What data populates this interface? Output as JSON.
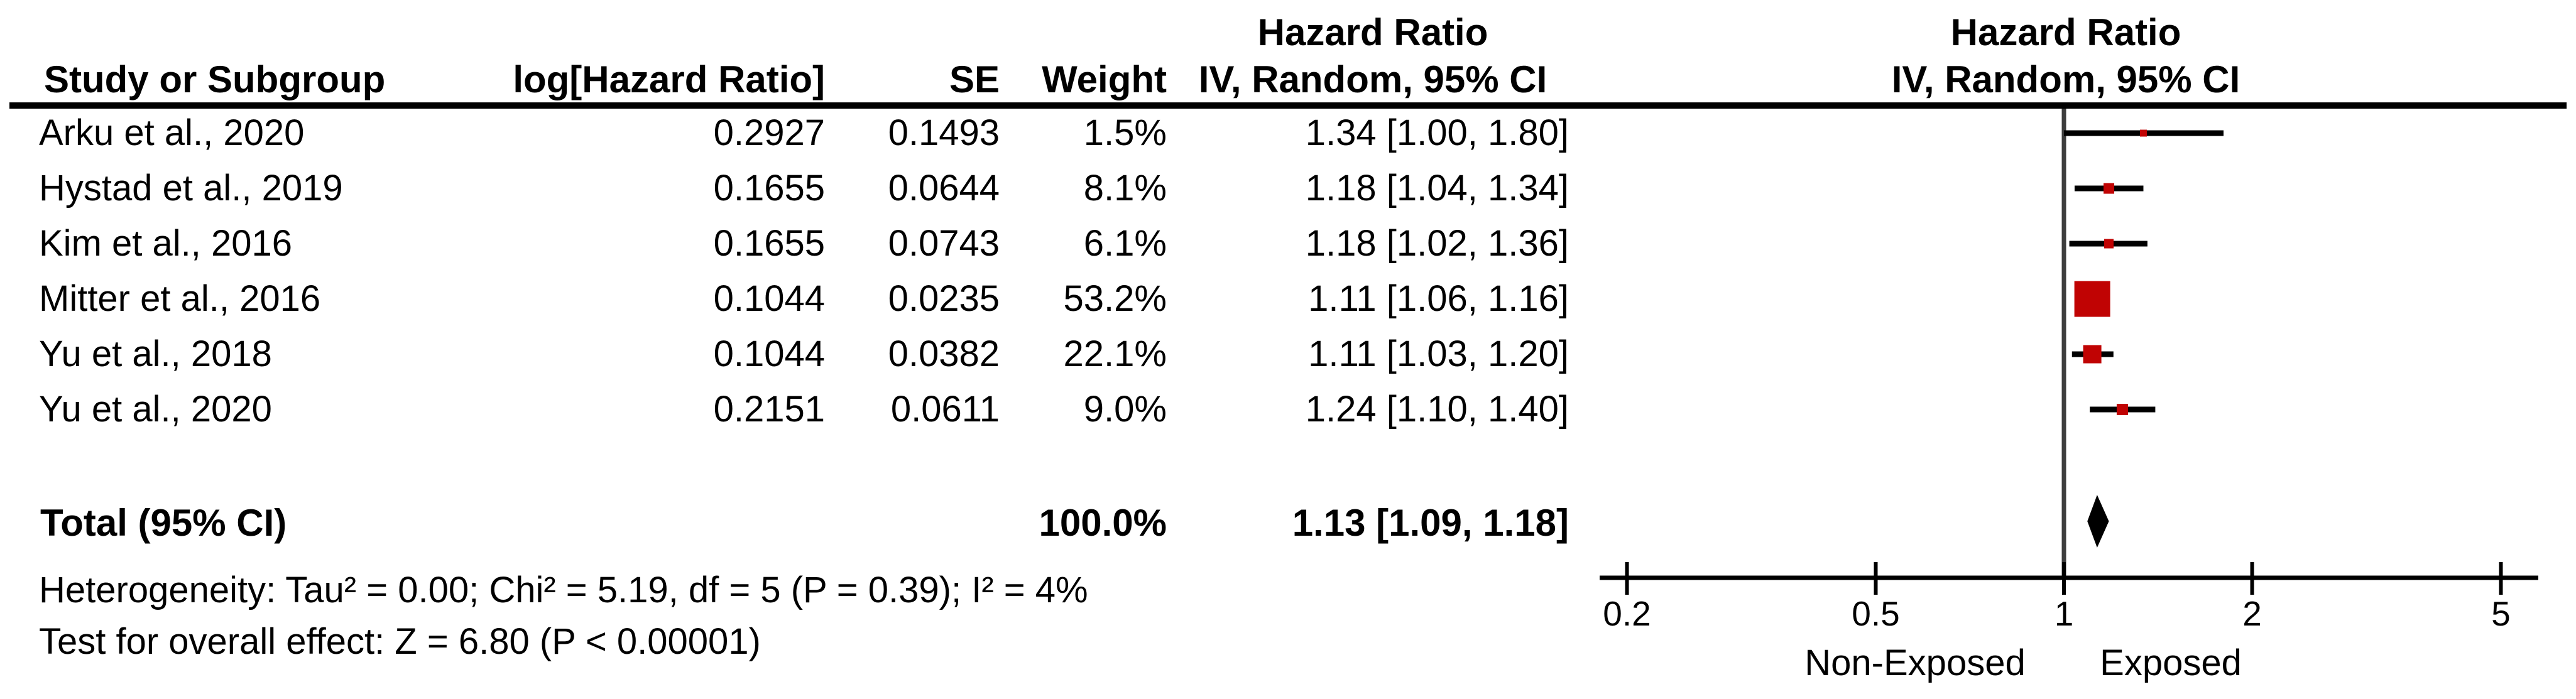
{
  "headers": {
    "study": "Study or Subgroup",
    "log_hr": "log[Hazard Ratio]",
    "se": "SE",
    "weight": "Weight",
    "effect_title": "Hazard Ratio",
    "method": "IV, Random, 95% CI"
  },
  "table": {
    "rows": [
      {
        "study": "Arku et al., 2020",
        "log_hr": "0.2927",
        "se": "0.1493",
        "weight": "1.5%",
        "ci": "1.34 [1.00, 1.80]"
      },
      {
        "study": "Hystad et al., 2019",
        "log_hr": "0.1655",
        "se": "0.0644",
        "weight": "8.1%",
        "ci": "1.18 [1.04, 1.34]"
      },
      {
        "study": "Kim et al., 2016",
        "log_hr": "0.1655",
        "se": "0.0743",
        "weight": "6.1%",
        "ci": "1.18 [1.02, 1.36]"
      },
      {
        "study": "Mitter et al., 2016",
        "log_hr": "0.1044",
        "se": "0.0235",
        "weight": "53.2%",
        "ci": "1.11 [1.06, 1.16]"
      },
      {
        "study": "Yu et al., 2018",
        "log_hr": "0.1044",
        "se": "0.0382",
        "weight": "22.1%",
        "ci": "1.11 [1.03, 1.20]"
      },
      {
        "study": "Yu et al., 2020",
        "log_hr": "0.2151",
        "se": "0.0611",
        "weight": "9.0%",
        "ci": "1.24 [1.10, 1.40]"
      }
    ],
    "total": {
      "label": "Total (95% CI)",
      "weight": "100.0%",
      "ci": "1.13 [1.09, 1.18]"
    }
  },
  "footer": {
    "heterogeneity": "Heterogeneity: Tau² = 0.00; Chi² = 5.19, df = 5 (P = 0.39); I² = 4%",
    "overall_effect": "Test for overall effect: Z = 6.80 (P < 0.00001)"
  },
  "chart_data": {
    "type": "forest",
    "title": "Hazard Ratio",
    "method": "IV, Random, 95% CI",
    "x_axis": {
      "scale": "log10",
      "ticks": [
        0.2,
        0.5,
        1,
        2,
        5
      ],
      "min": 0.2,
      "max": 5,
      "null_value": 1,
      "left_label": "Non-Exposed",
      "right_label": "Exposed"
    },
    "studies": [
      {
        "name": "Arku et al., 2020",
        "hr": 1.34,
        "lo": 1.0,
        "hi": 1.8,
        "weight_pct": 1.5
      },
      {
        "name": "Hystad et al., 2019",
        "hr": 1.18,
        "lo": 1.04,
        "hi": 1.34,
        "weight_pct": 8.1
      },
      {
        "name": "Kim et al., 2016",
        "hr": 1.18,
        "lo": 1.02,
        "hi": 1.36,
        "weight_pct": 6.1
      },
      {
        "name": "Mitter et al., 2016",
        "hr": 1.11,
        "lo": 1.06,
        "hi": 1.16,
        "weight_pct": 53.2
      },
      {
        "name": "Yu et al., 2018",
        "hr": 1.11,
        "lo": 1.03,
        "hi": 1.2,
        "weight_pct": 22.1
      },
      {
        "name": "Yu et al., 2020",
        "hr": 1.24,
        "lo": 1.1,
        "hi": 1.4,
        "weight_pct": 9.0
      }
    ],
    "total": {
      "hr": 1.13,
      "lo": 1.09,
      "hi": 1.18,
      "weight_pct": 100.0
    },
    "colors": {
      "square": "#c00303",
      "ci_line": "#000000",
      "diamond": "#000000",
      "null_line": "#3d3d3d",
      "axis": "#000000"
    }
  }
}
